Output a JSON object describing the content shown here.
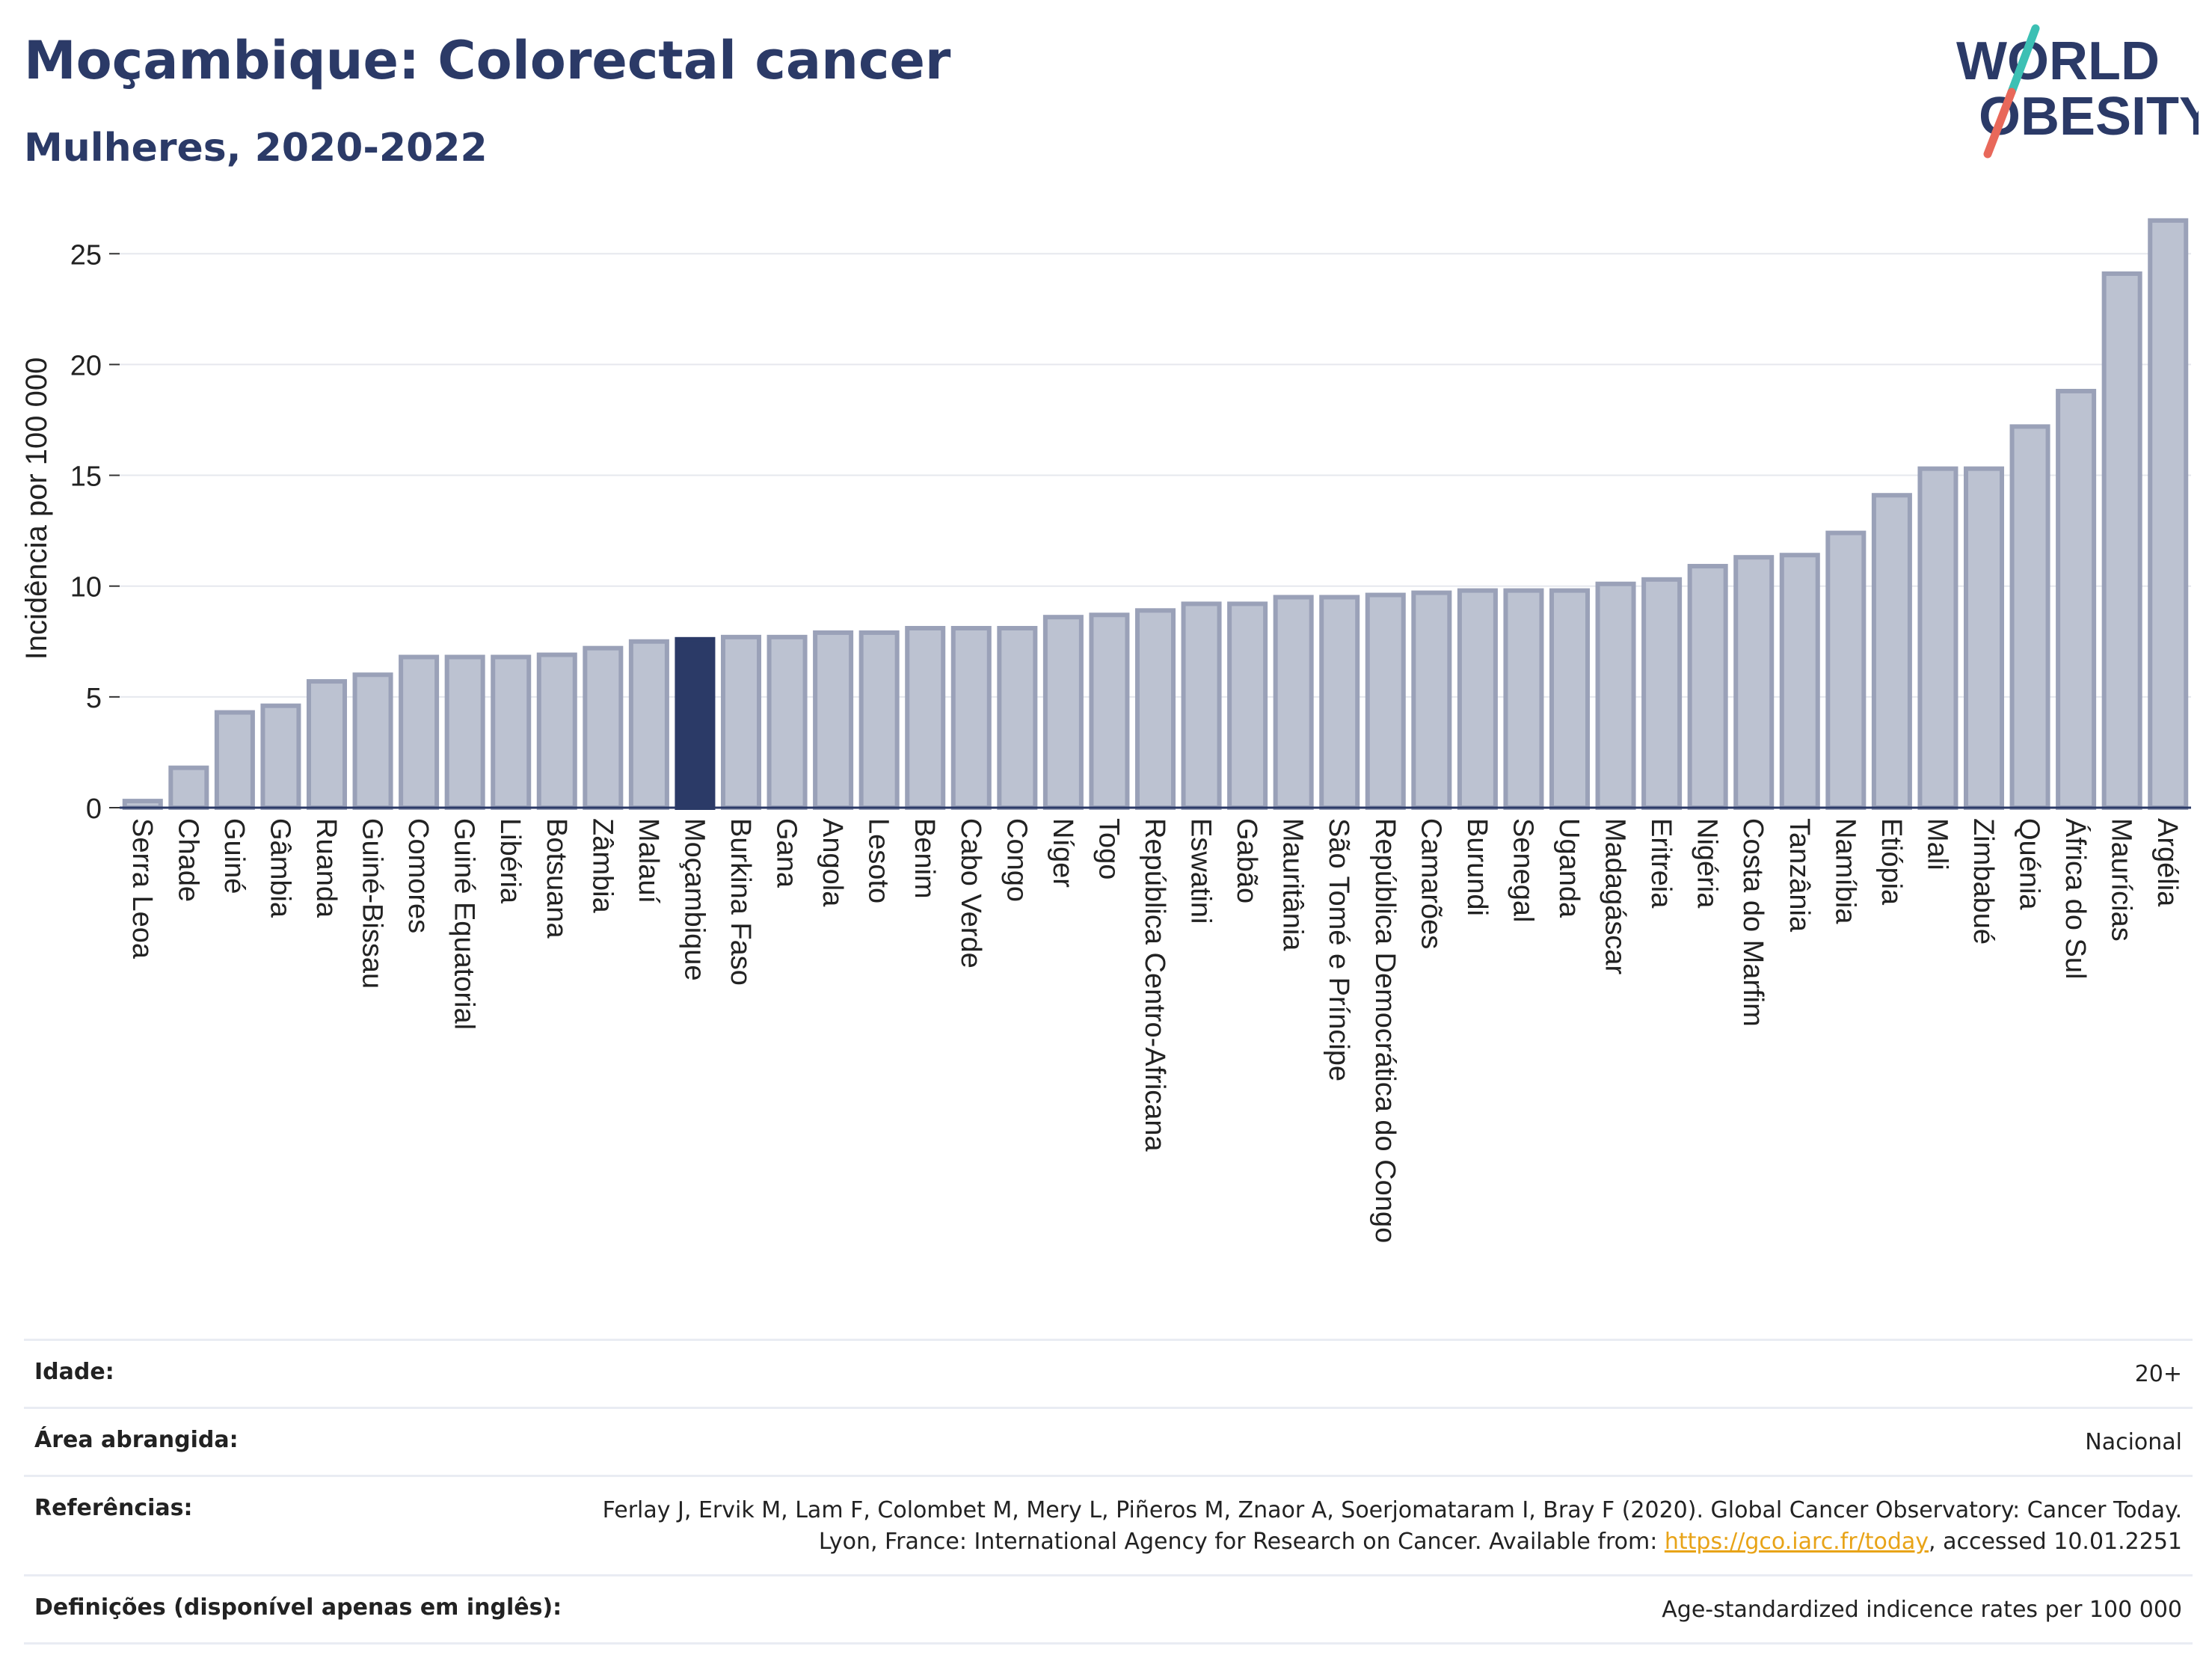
{
  "header": {
    "title": "Moçambique: Colorectal cancer",
    "subtitle": "Mulheres, 2020-2022"
  },
  "logo": {
    "text_line1": "WORLD",
    "text_line2": "OBESITY",
    "color_text": "#2b3a67",
    "color_slash_top": "#3cc0b4",
    "color_slash_bottom": "#e8685a"
  },
  "chart_data": {
    "type": "bar",
    "ylabel": "Incidência por 100 000",
    "ylim": [
      0,
      27
    ],
    "yticks": [
      0,
      5,
      10,
      15,
      20,
      25
    ],
    "grid": true,
    "highlight": "Moçambique",
    "colors": {
      "bar": "#bcc2d1",
      "bar_edge": "#9aa1b8",
      "highlight": "#2b3a67"
    },
    "categories": [
      "Serra Leoa",
      "Chade",
      "Guiné",
      "Gâmbia",
      "Ruanda",
      "Guiné-Bissau",
      "Comores",
      "Guiné Equatorial",
      "Libéria",
      "Botsuana",
      "Zâmbia",
      "Malauí",
      "Moçambique",
      "Burkina Faso",
      "Gana",
      "Angola",
      "Lesoto",
      "Benim",
      "Cabo Verde",
      "Congo",
      "Níger",
      "Togo",
      "República Centro-Africana",
      "Eswatini",
      "Gabão",
      "Mauritânia",
      "São Tomé e Príncipe",
      "República Democrática do Congo",
      "Camarões",
      "Burundi",
      "Senegal",
      "Uganda",
      "Madagáscar",
      "Eritreia",
      "Nigéria",
      "Costa do Marfim",
      "Tanzânia",
      "Namíbia",
      "Etiópia",
      "Mali",
      "Zimbabué",
      "Quénia",
      "África do Sul",
      "Maurícias",
      "Argélia"
    ],
    "values": [
      0.3,
      1.8,
      4.3,
      4.6,
      5.7,
      6.0,
      6.8,
      6.8,
      6.8,
      6.9,
      7.2,
      7.5,
      7.6,
      7.7,
      7.7,
      7.9,
      7.9,
      8.1,
      8.1,
      8.1,
      8.6,
      8.7,
      8.9,
      9.2,
      9.2,
      9.5,
      9.5,
      9.6,
      9.7,
      9.8,
      9.8,
      9.8,
      10.1,
      10.3,
      10.9,
      11.3,
      11.4,
      12.4,
      14.1,
      15.3,
      15.3,
      17.2,
      18.8,
      24.1,
      26.5
    ]
  },
  "footer": {
    "rows": [
      {
        "label": "Idade:",
        "value": "20+"
      },
      {
        "label": "Área abrangida:",
        "value": "Nacional"
      },
      {
        "label": "Referências:",
        "value_pre": "Ferlay J, Ervik M, Lam F, Colombet M, Mery L, Piñeros M, Znaor A, Soerjomataram I, Bray F (2020). Global Cancer Observatory: Cancer Today. Lyon, France: International Agency for Research on Cancer. Available from: ",
        "link": "https://gco.iarc.fr/today",
        "value_post": ", accessed 10.01.2251"
      },
      {
        "label": "Definições (disponível apenas em inglês):",
        "value": "Age-standardized indicence rates per 100 000"
      }
    ]
  }
}
